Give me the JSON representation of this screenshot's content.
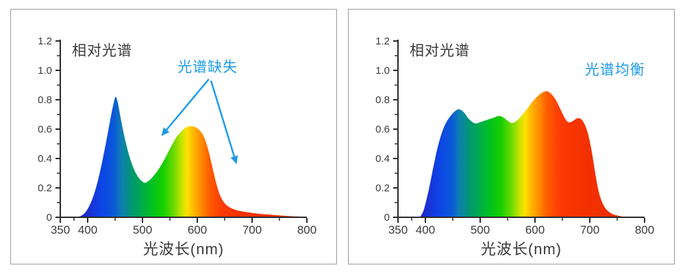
{
  "colors": {
    "accent": "#1E9CE8",
    "axis": "#2a2a2a",
    "text": "#3a3a3a",
    "panel_border": "#9b9b9b",
    "background": "#ffffff",
    "spectrum_stops": [
      [
        380,
        "#2121B4"
      ],
      [
        400,
        "#1C2ECF"
      ],
      [
        425,
        "#0D44E6"
      ],
      [
        448,
        "#0A58D8"
      ],
      [
        462,
        "#0E7FB0"
      ],
      [
        478,
        "#019478"
      ],
      [
        497,
        "#00A94E"
      ],
      [
        517,
        "#00C122"
      ],
      [
        538,
        "#16CF00"
      ],
      [
        558,
        "#6FDA00"
      ],
      [
        572,
        "#C8E400"
      ],
      [
        582,
        "#FFE000"
      ],
      [
        594,
        "#FFB300"
      ],
      [
        608,
        "#FF8A00"
      ],
      [
        622,
        "#FF5D00"
      ],
      [
        645,
        "#FB3A04"
      ],
      [
        700,
        "#F23000"
      ],
      [
        800,
        "#ED2D00"
      ]
    ]
  },
  "panels": [
    {
      "title": "相对光谱",
      "xlabel": "光波长(nm)",
      "annotation": "光谱缺失"
    },
    {
      "title": "相对光谱",
      "xlabel": "光波长(nm)",
      "annotation": "光谱均衡"
    }
  ],
  "chart_data": [
    {
      "type": "area",
      "title": "相对光谱",
      "xlabel": "光波长(nm)",
      "ylabel": "",
      "xlim": [
        350,
        800
      ],
      "ylim": [
        0,
        1.2
      ],
      "grid": false,
      "x_tick_values": [
        350,
        400,
        500,
        600,
        700,
        800
      ],
      "x_tick_labels": [
        "350",
        "400",
        "500",
        "600",
        "700",
        "800"
      ],
      "x_minor_ticks": [
        375,
        450,
        550,
        650,
        750
      ],
      "y_tick_values": [
        0,
        0.2,
        0.4,
        0.6,
        0.8,
        1.0,
        1.2
      ],
      "y_tick_labels": [
        "0",
        "0.2",
        "0.4",
        "0.6",
        "0.8",
        "1.0",
        "1.2"
      ],
      "y_minor_ticks": [
        0.1,
        0.3,
        0.5,
        0.7,
        0.9,
        1.1
      ],
      "annotation": {
        "text": "光谱缺失",
        "pos": [
          619,
          1.03
        ],
        "arrows": [
          {
            "from": [
              621,
              0.94
            ],
            "to": [
              536,
              0.56
            ]
          },
          {
            "from": [
              625,
              0.93
            ],
            "to": [
              671,
              0.37
            ]
          }
        ]
      },
      "series": [
        {
          "name": "相对光谱(光谱缺失)",
          "x": [
            380,
            388,
            395,
            402,
            410,
            418,
            426,
            434,
            441,
            447,
            451,
            455,
            460,
            467,
            475,
            483,
            491,
            499,
            505,
            512,
            520,
            530,
            541,
            552,
            562,
            572,
            581,
            590,
            598,
            606,
            613,
            620,
            627,
            634,
            641,
            648,
            656,
            665,
            675,
            690,
            710,
            735,
            760,
            785,
            800
          ],
          "y": [
            0,
            0.01,
            0.03,
            0.07,
            0.14,
            0.24,
            0.37,
            0.52,
            0.66,
            0.77,
            0.82,
            0.78,
            0.68,
            0.55,
            0.43,
            0.34,
            0.28,
            0.245,
            0.235,
            0.25,
            0.28,
            0.33,
            0.4,
            0.48,
            0.545,
            0.59,
            0.615,
            0.62,
            0.61,
            0.585,
            0.54,
            0.46,
            0.35,
            0.24,
            0.155,
            0.105,
            0.075,
            0.057,
            0.045,
            0.035,
            0.025,
            0.017,
            0.01,
            0.005,
            0.003
          ]
        }
      ]
    },
    {
      "type": "area",
      "title": "相对光谱",
      "xlabel": "光波长(nm)",
      "ylabel": "",
      "xlim": [
        350,
        800
      ],
      "ylim": [
        0,
        1.2
      ],
      "grid": false,
      "x_tick_values": [
        350,
        400,
        500,
        600,
        700,
        800
      ],
      "x_tick_labels": [
        "350",
        "400",
        "500",
        "600",
        "700",
        "800"
      ],
      "x_minor_ticks": [
        375,
        450,
        550,
        650,
        750
      ],
      "y_tick_values": [
        0,
        0.2,
        0.4,
        0.6,
        0.8,
        1.0,
        1.2
      ],
      "y_tick_labels": [
        "0",
        "0.2",
        "0.4",
        "0.6",
        "0.8",
        "1.0",
        "1.2"
      ],
      "y_minor_ticks": [
        0.1,
        0.3,
        0.5,
        0.7,
        0.9,
        1.1
      ],
      "annotation": {
        "text": "光谱均衡",
        "pos": [
          746,
          1.01
        ],
        "arrows": []
      },
      "series": [
        {
          "name": "相对光谱(光谱均衡)",
          "x": [
            390,
            396,
            402,
            408,
            415,
            422,
            430,
            438,
            447,
            455,
            462,
            470,
            478,
            485,
            492,
            500,
            510,
            520,
            528,
            535,
            543,
            551,
            558,
            566,
            575,
            585,
            595,
            605,
            614,
            621,
            628,
            636,
            644,
            651,
            657,
            662,
            668,
            674,
            679,
            685,
            691,
            697,
            703,
            708,
            713,
            718,
            724,
            731,
            740,
            750,
            762,
            775
          ],
          "y": [
            0,
            0.04,
            0.12,
            0.22,
            0.35,
            0.47,
            0.575,
            0.645,
            0.695,
            0.725,
            0.735,
            0.715,
            0.675,
            0.65,
            0.638,
            0.648,
            0.66,
            0.672,
            0.683,
            0.69,
            0.678,
            0.655,
            0.642,
            0.655,
            0.69,
            0.735,
            0.785,
            0.825,
            0.85,
            0.858,
            0.845,
            0.81,
            0.755,
            0.7,
            0.66,
            0.645,
            0.652,
            0.668,
            0.675,
            0.665,
            0.63,
            0.565,
            0.46,
            0.345,
            0.235,
            0.15,
            0.09,
            0.05,
            0.025,
            0.012,
            0.004,
            0
          ]
        }
      ]
    }
  ]
}
